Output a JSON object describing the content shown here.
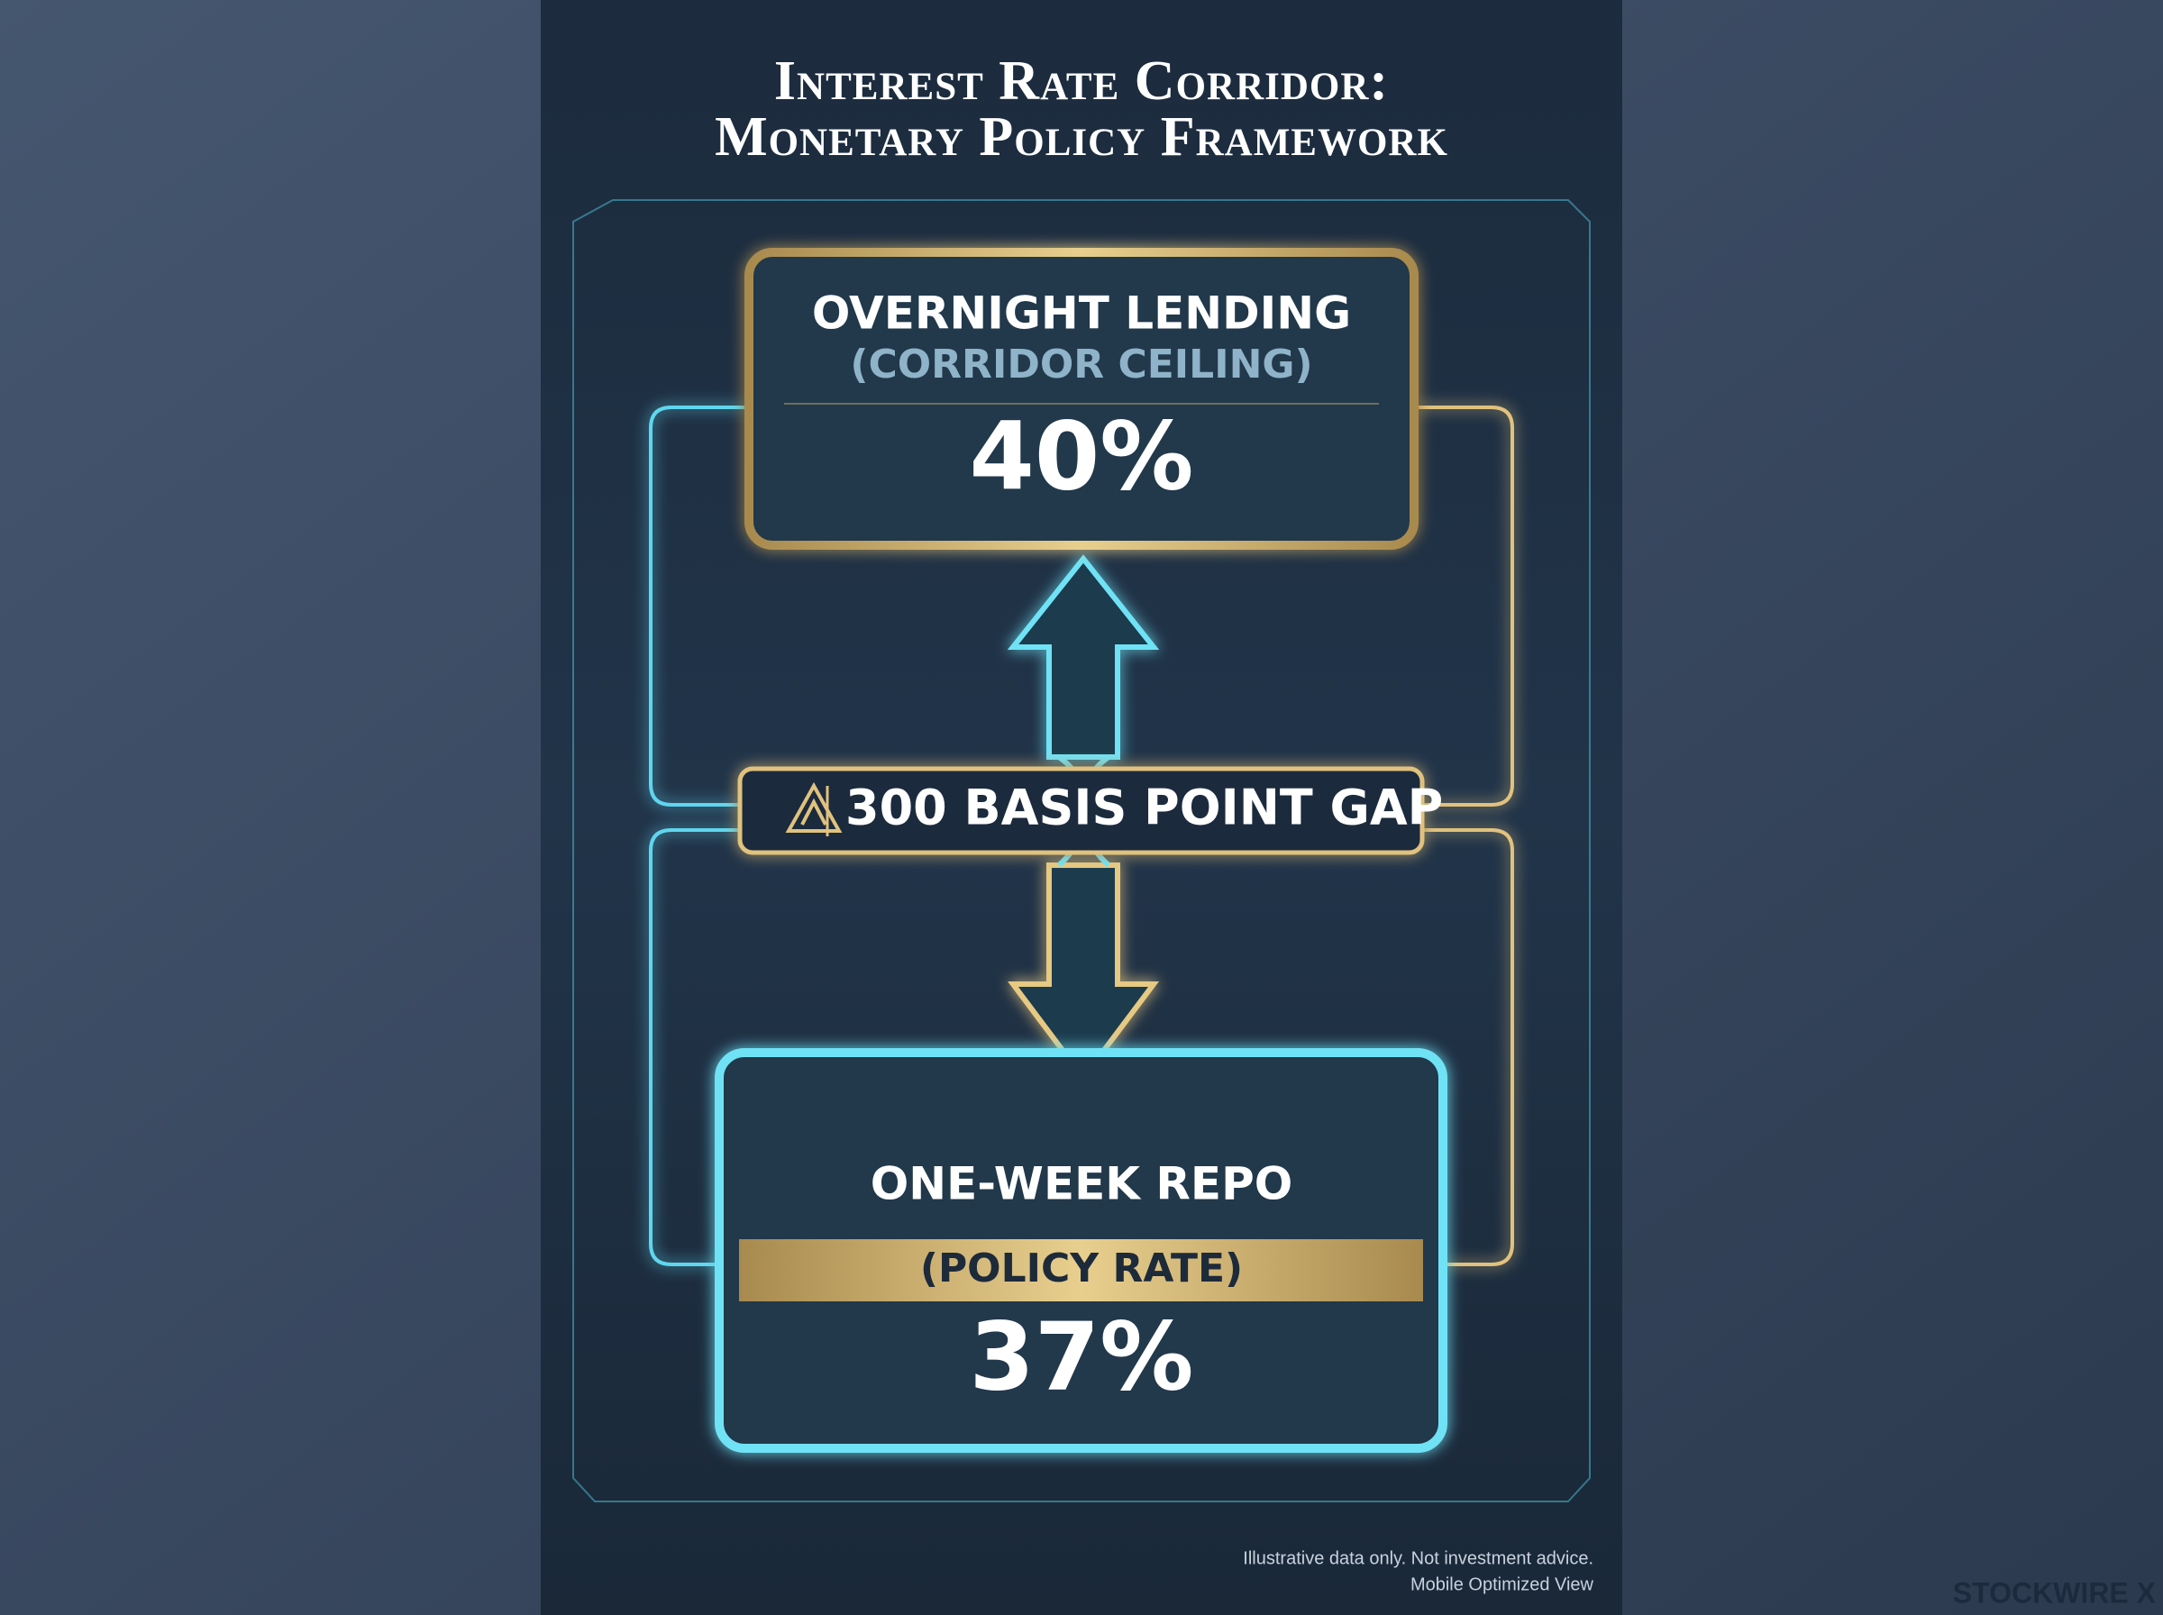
{
  "header": {
    "title_lines": [
      "Interest Rate Corridor:",
      "Monetary Policy Framework"
    ]
  },
  "ceiling": {
    "label": "OVERNIGHT LENDING",
    "sublabel": "(CORRIDOR CEILING)",
    "rate": "40%"
  },
  "gap": {
    "label": "300 BASIS POINT GAP"
  },
  "policy": {
    "label": "ONE-WEEK REPO",
    "sublabel": "(POLICY RATE)",
    "rate": "37%"
  },
  "footer": {
    "lines": [
      "Illustrative data only. Not investment advice.",
      "Mobile Optimized View"
    ],
    "brand": "STOCKWIRE X"
  }
}
